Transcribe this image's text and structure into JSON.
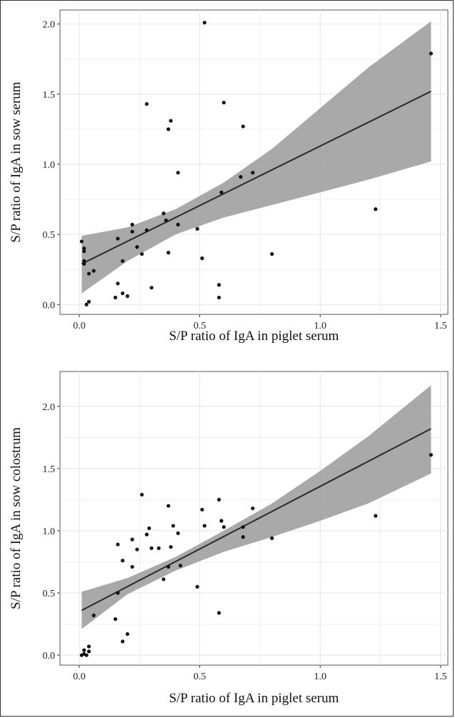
{
  "chart_data": [
    {
      "type": "scatter",
      "title": "",
      "xlabel": "S/P ratio of IgA in piglet serum",
      "ylabel": "S/P ratio of IgA in sow serum",
      "xlim": [
        -0.08,
        1.53
      ],
      "ylim": [
        -0.07,
        2.1
      ],
      "xticks": [
        0.0,
        0.5,
        1.0,
        1.5
      ],
      "xtick_labels": [
        "0.0",
        "0.5",
        "1.0",
        "1.5"
      ],
      "yticks": [
        0.0,
        0.5,
        1.0,
        1.5,
        2.0
      ],
      "ytick_labels": [
        "0.0",
        "0.5",
        "1.0",
        "1.5",
        "2.0"
      ],
      "grid": true,
      "legend": "none",
      "colors": {
        "points": "#111111",
        "line": "#2a2a2a",
        "band": "#9a9a9a",
        "grid": "#e6e6e6"
      },
      "points": [
        [
          0.01,
          0.45
        ],
        [
          0.02,
          0.4
        ],
        [
          0.02,
          0.38
        ],
        [
          0.02,
          0.31
        ],
        [
          0.02,
          0.29
        ],
        [
          0.03,
          0.0
        ],
        [
          0.04,
          0.02
        ],
        [
          0.04,
          0.22
        ],
        [
          0.06,
          0.24
        ],
        [
          0.15,
          0.05
        ],
        [
          0.16,
          0.15
        ],
        [
          0.16,
          0.47
        ],
        [
          0.18,
          0.08
        ],
        [
          0.18,
          0.31
        ],
        [
          0.2,
          0.06
        ],
        [
          0.22,
          0.52
        ],
        [
          0.22,
          0.57
        ],
        [
          0.24,
          0.41
        ],
        [
          0.26,
          0.36
        ],
        [
          0.28,
          0.53
        ],
        [
          0.28,
          1.43
        ],
        [
          0.3,
          0.12
        ],
        [
          0.35,
          0.65
        ],
        [
          0.36,
          0.6
        ],
        [
          0.37,
          0.37
        ],
        [
          0.37,
          1.25
        ],
        [
          0.38,
          1.31
        ],
        [
          0.41,
          0.94
        ],
        [
          0.41,
          0.57
        ],
        [
          0.49,
          0.54
        ],
        [
          0.51,
          0.33
        ],
        [
          0.52,
          2.01
        ],
        [
          0.58,
          0.14
        ],
        [
          0.58,
          0.05
        ],
        [
          0.59,
          0.8
        ],
        [
          0.6,
          1.44
        ],
        [
          0.67,
          0.91
        ],
        [
          0.68,
          1.27
        ],
        [
          0.72,
          0.94
        ],
        [
          0.8,
          0.36
        ],
        [
          1.23,
          0.68
        ],
        [
          1.46,
          1.79
        ]
      ],
      "fit_line": {
        "x": [
          0.01,
          1.46
        ],
        "y": [
          0.29,
          1.52
        ]
      },
      "confidence_band": {
        "x": [
          0.01,
          0.2,
          0.4,
          0.6,
          0.8,
          1.0,
          1.2,
          1.46
        ],
        "lower": [
          0.08,
          0.31,
          0.5,
          0.62,
          0.71,
          0.8,
          0.89,
          1.02
        ],
        "upper": [
          0.49,
          0.55,
          0.68,
          0.87,
          1.11,
          1.4,
          1.69,
          2.02
        ]
      }
    },
    {
      "type": "scatter",
      "title": "",
      "xlabel": "S/P ratio of IgA in piglet serum",
      "ylabel": "S/P ratio of IgA in sow colostrum",
      "xlim": [
        -0.08,
        1.53
      ],
      "ylim": [
        -0.08,
        2.28
      ],
      "xticks": [
        0.0,
        0.5,
        1.0,
        1.5
      ],
      "xtick_labels": [
        "0.0",
        "0.5",
        "1.0",
        "1.5"
      ],
      "yticks": [
        0.0,
        0.5,
        1.0,
        1.5,
        2.0
      ],
      "ytick_labels": [
        "0.0",
        "0.5",
        "1.0",
        "1.5",
        "2.0"
      ],
      "grid": true,
      "legend": "none",
      "colors": {
        "points": "#111111",
        "line": "#2a2a2a",
        "band": "#9a9a9a",
        "grid": "#e6e6e6"
      },
      "points": [
        [
          0.01,
          0.0
        ],
        [
          0.02,
          0.01
        ],
        [
          0.02,
          0.04
        ],
        [
          0.03,
          0.0
        ],
        [
          0.04,
          0.03
        ],
        [
          0.04,
          0.07
        ],
        [
          0.06,
          0.32
        ],
        [
          0.15,
          0.29
        ],
        [
          0.16,
          0.89
        ],
        [
          0.16,
          0.5
        ],
        [
          0.18,
          0.76
        ],
        [
          0.18,
          0.11
        ],
        [
          0.2,
          0.17
        ],
        [
          0.22,
          0.71
        ],
        [
          0.22,
          0.93
        ],
        [
          0.24,
          0.85
        ],
        [
          0.26,
          1.29
        ],
        [
          0.28,
          0.97
        ],
        [
          0.29,
          1.02
        ],
        [
          0.3,
          0.86
        ],
        [
          0.33,
          0.86
        ],
        [
          0.35,
          0.61
        ],
        [
          0.37,
          0.71
        ],
        [
          0.37,
          1.2
        ],
        [
          0.38,
          0.87
        ],
        [
          0.39,
          1.04
        ],
        [
          0.41,
          0.98
        ],
        [
          0.42,
          0.72
        ],
        [
          0.49,
          0.55
        ],
        [
          0.51,
          1.17
        ],
        [
          0.52,
          1.04
        ],
        [
          0.58,
          1.25
        ],
        [
          0.58,
          0.34
        ],
        [
          0.59,
          1.08
        ],
        [
          0.6,
          1.03
        ],
        [
          0.68,
          0.95
        ],
        [
          0.68,
          1.03
        ],
        [
          0.72,
          1.18
        ],
        [
          0.8,
          0.94
        ],
        [
          1.23,
          1.12
        ],
        [
          1.46,
          1.61
        ]
      ],
      "fit_line": {
        "x": [
          0.01,
          1.46
        ],
        "y": [
          0.36,
          1.82
        ]
      },
      "confidence_band": {
        "x": [
          0.01,
          0.2,
          0.4,
          0.6,
          0.8,
          1.0,
          1.2,
          1.46
        ],
        "lower": [
          0.21,
          0.49,
          0.68,
          0.83,
          0.95,
          1.08,
          1.22,
          1.46
        ],
        "upper": [
          0.51,
          0.62,
          0.79,
          1.0,
          1.22,
          1.48,
          1.76,
          2.17
        ]
      }
    }
  ]
}
